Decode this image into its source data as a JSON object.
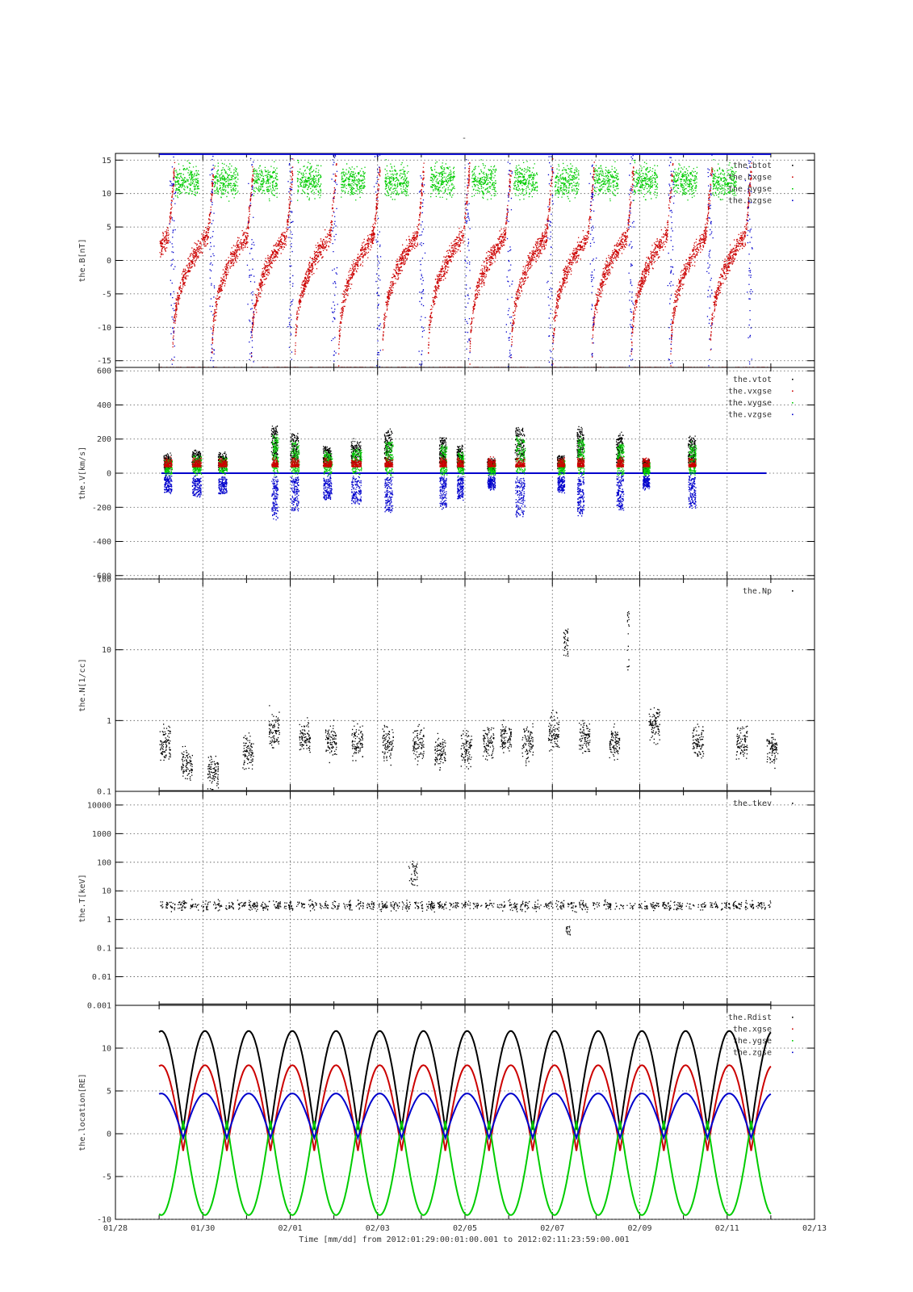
{
  "figure": {
    "title": "-",
    "xlabel": "Time [mm/dd]  from 2012:01:29:00:01:00.001  to  2012:02:11:23:59:00.001",
    "x_ticks": [
      "01/28",
      "01/30",
      "02/01",
      "02/03",
      "02/05",
      "02/07",
      "02/09",
      "02/11",
      "02/13"
    ],
    "x_range_days": [
      "2012-01-28",
      "2012-02-13"
    ],
    "grid": true
  },
  "chart_data": [
    {
      "type": "scatter",
      "ylabel": "the.B[nT]",
      "ylim": [
        -16,
        16
      ],
      "yscale": "linear",
      "yticks": [
        "15",
        "10",
        "5",
        "0",
        "-5",
        "-10",
        "-15"
      ],
      "legend": "top-right",
      "series": [
        {
          "name": "the.btot",
          "color": "#000000"
        },
        {
          "name": "the.bxgse",
          "color": "#cc0000"
        },
        {
          "name": "the.bygse",
          "color": "#00cc00"
        },
        {
          "name": "the.bzgse",
          "color": "#0000cc"
        }
      ],
      "pattern": "orbit sawtooth: bxgse rises from -16 to ~8 each orbit, bygse clusters 10..16 near apogee, btot saturated at +16"
    },
    {
      "type": "scatter",
      "ylabel": "the.V[km/s]",
      "ylim": [
        -620,
        620
      ],
      "yscale": "linear",
      "yticks": [
        "600",
        "400",
        "200",
        "0",
        "-200",
        "-400",
        "-600"
      ],
      "legend": "top-right",
      "series": [
        {
          "name": "the.vtot",
          "color": "#000000"
        },
        {
          "name": "the.vxgse",
          "color": "#cc0000"
        },
        {
          "name": "the.vygse",
          "color": "#00cc00"
        },
        {
          "name": "the.vzgse",
          "color": "#0000cc"
        }
      ],
      "bursts_day_offsets": [
        1.15,
        1.8,
        2.4,
        3.6,
        4.05,
        4.8,
        5.45,
        6.2,
        7.45,
        7.85,
        8.55,
        9.2,
        10.15,
        10.6,
        11.5,
        12.1,
        13.15
      ]
    },
    {
      "type": "scatter",
      "ylabel": "the.N[1/cc]",
      "ylim": [
        0.1,
        100
      ],
      "yscale": "log",
      "yticks": [
        "100",
        "10",
        "1",
        "0.1"
      ],
      "legend": "top-right",
      "series": [
        {
          "name": "the.Np",
          "color": "#000000"
        }
      ]
    },
    {
      "type": "scatter",
      "ylabel": "the.T[keV]",
      "ylim": [
        0.001,
        30000
      ],
      "yscale": "log",
      "yticks": [
        "10000",
        "1000",
        "100",
        "10",
        "1",
        "0.1",
        "0.01",
        "0.001"
      ],
      "legend": "top-right",
      "series": [
        {
          "name": "the.tkev",
          "color": "#000000"
        }
      ]
    },
    {
      "type": "line",
      "ylabel": "the.location[RE]",
      "ylim": [
        -10,
        15
      ],
      "yscale": "linear",
      "yticks": [
        "10",
        "5",
        "0",
        "-5",
        "-10"
      ],
      "legend": "top-right",
      "orbit_period_days": 1.0,
      "series": [
        {
          "name": "the.Rdist",
          "color": "#000000",
          "max": 12,
          "min": 0.5
        },
        {
          "name": "the.xgse",
          "color": "#cc0000",
          "max": 8,
          "min": -2
        },
        {
          "name": "the.ygse",
          "color": "#00cc00",
          "max": 1.5,
          "min": -9.5
        },
        {
          "name": "the.zgse",
          "color": "#0000cc",
          "max": 4.7,
          "min": -0.5
        }
      ]
    }
  ]
}
